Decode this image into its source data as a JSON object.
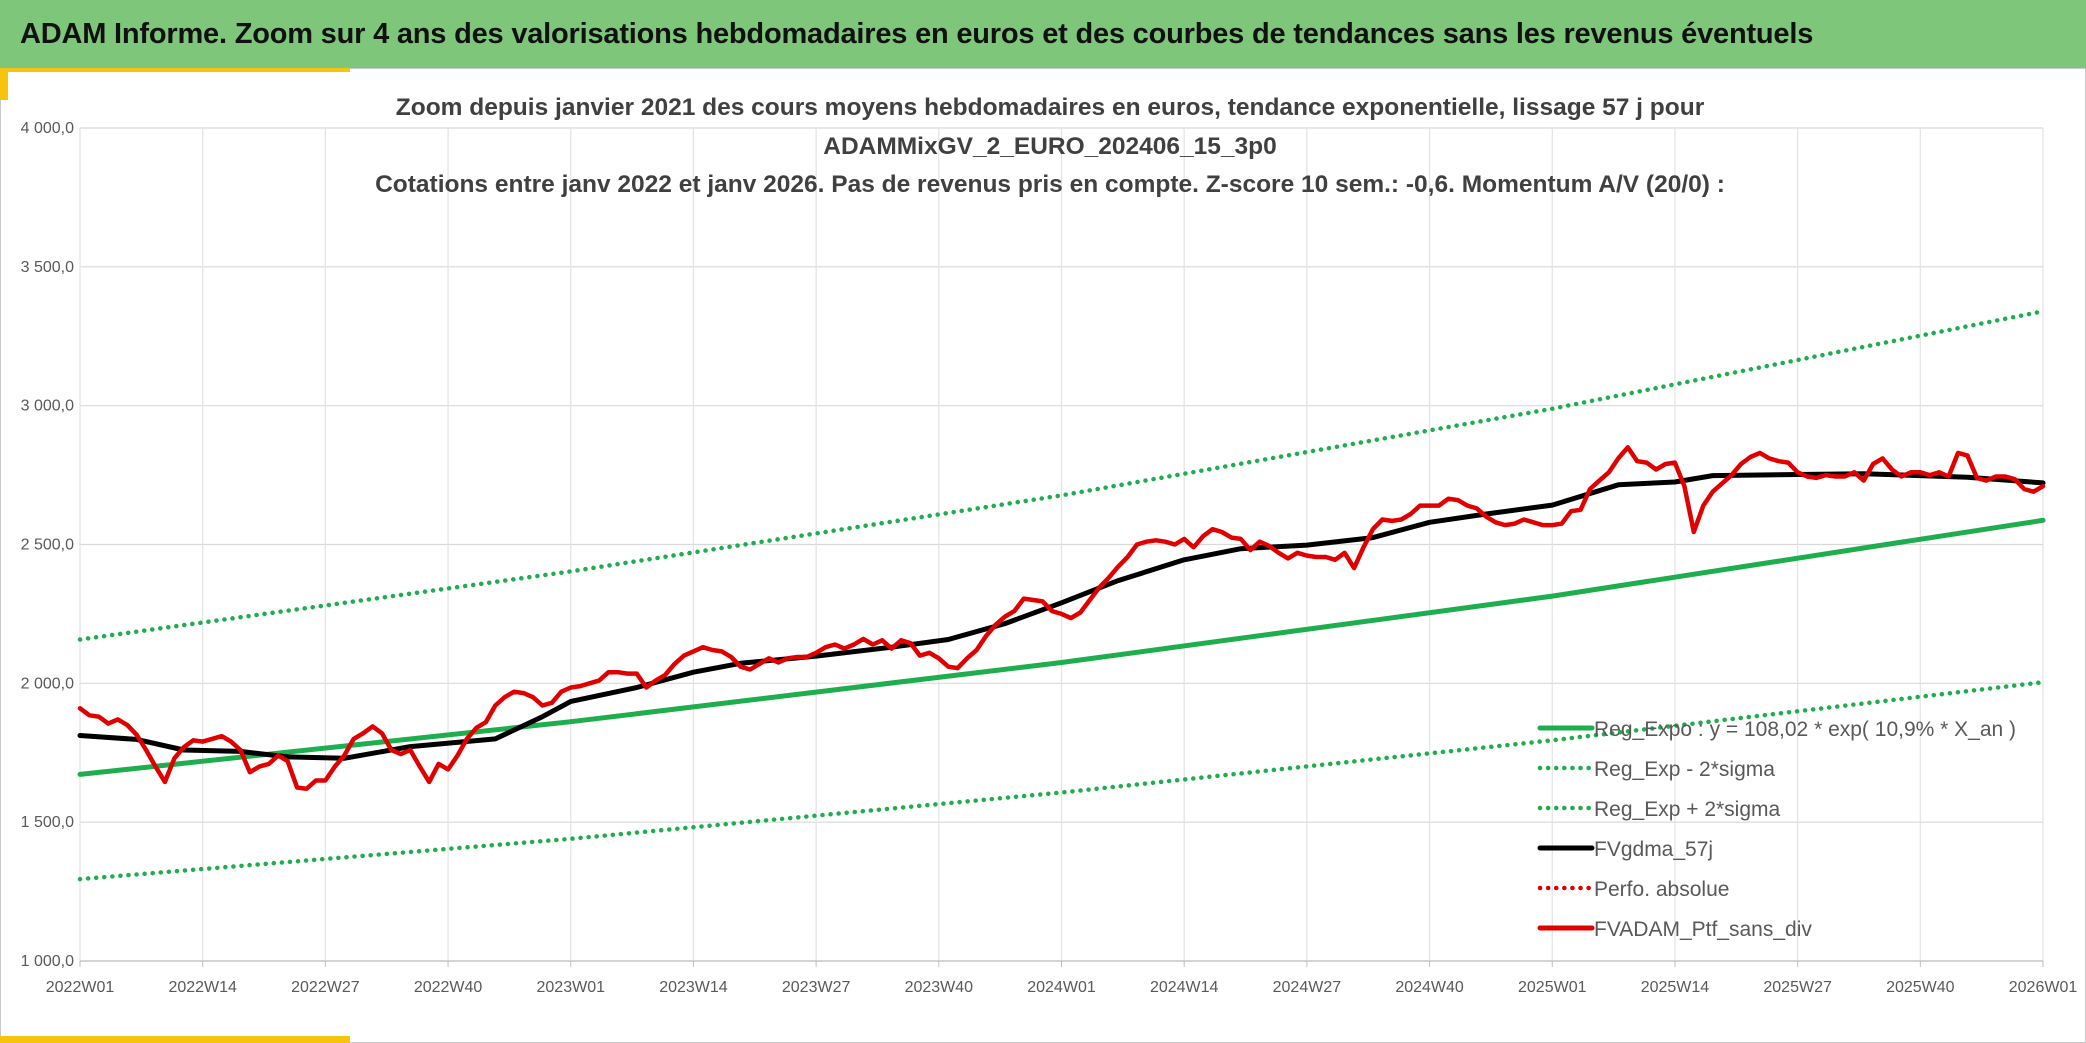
{
  "header": {
    "title": "ADAM Informe. Zoom sur 4 ans des valorisations hebdomadaires en euros et des courbes de tendances sans les revenus éventuels"
  },
  "colors": {
    "banner": "#7dc67a",
    "accent_bar": "#f6c40f",
    "trend": "#1fae4e",
    "band": "#1fae4e",
    "smooth": "#000000",
    "perf": "#e00000",
    "price": "#e00000"
  },
  "chart_data": {
    "type": "line",
    "title_lines": [
      "Zoom depuis janvier 2021 des cours moyens hebdomadaires en euros, tendance exponentielle, lissage 57 j pour",
      "ADAMMixGV_2_EURO_202406_15_3p0",
      "Cotations entre janv 2022 et janv 2026. Pas de revenus pris en compte. Z-score 10 sem.: -0,6. Momentum A/V (20/0) :"
    ],
    "xlabel": "",
    "ylabel": "",
    "x_ticks": [
      "2022W01",
      "2022W14",
      "2022W27",
      "2022W40",
      "2023W01",
      "2023W14",
      "2023W27",
      "2023W40",
      "2024W01",
      "2024W14",
      "2024W27",
      "2024W40",
      "2025W01",
      "2025W14",
      "2025W27",
      "2025W40",
      "2026W01"
    ],
    "x_range": [
      "2022W01",
      "2026W01"
    ],
    "y_ticks": [
      "1 000,0",
      "1 500,0",
      "2 000,0",
      "2 500,0",
      "3 000,0",
      "3 500,0",
      "4 000,0"
    ],
    "ylim": [
      1000,
      4000
    ],
    "grid": true,
    "legend_position": "bottom-right",
    "series": [
      {
        "name": "Reg_Expo : y = 108,02 * exp( 10,9% *  X_an )",
        "style": "solid",
        "color": "#1fae4e",
        "points": [
          [
            "2022W01",
            1672
          ],
          [
            "2023W01",
            1862
          ],
          [
            "2024W01",
            2075
          ],
          [
            "2025W01",
            2314
          ],
          [
            "2026W01",
            2587
          ]
        ]
      },
      {
        "name": "Reg_Exp - 2*sigma",
        "style": "dotted",
        "color": "#1fae4e",
        "points": [
          [
            "2022W01",
            1295
          ],
          [
            "2023W01",
            1440
          ],
          [
            "2024W01",
            1607
          ],
          [
            "2025W01",
            1795
          ],
          [
            "2026W01",
            2004
          ]
        ]
      },
      {
        "name": "Reg_Exp + 2*sigma",
        "style": "dotted",
        "color": "#1fae4e",
        "points": [
          [
            "2022W01",
            2158
          ],
          [
            "2023W01",
            2403
          ],
          [
            "2024W01",
            2677
          ],
          [
            "2025W01",
            2989
          ],
          [
            "2026W01",
            3340
          ]
        ]
      },
      {
        "name": "FVgdma_57j",
        "style": "solid",
        "color": "#000000",
        "points": [
          [
            "2022W01",
            1812
          ],
          [
            "2022W07",
            1798
          ],
          [
            "2022W12",
            1760
          ],
          [
            "2022W18",
            1755
          ],
          [
            "2022W23",
            1735
          ],
          [
            "2022W29",
            1730
          ],
          [
            "2022W36",
            1772
          ],
          [
            "2022W45",
            1800
          ],
          [
            "2022W50",
            1880
          ],
          [
            "2023W01",
            1935
          ],
          [
            "2023W08",
            1985
          ],
          [
            "2023W14",
            2040
          ],
          [
            "2023W19",
            2072
          ],
          [
            "2023W27",
            2098
          ],
          [
            "2023W35",
            2130
          ],
          [
            "2023W41",
            2158
          ],
          [
            "2023W47",
            2215
          ],
          [
            "2024W01",
            2290
          ],
          [
            "2024W07",
            2370
          ],
          [
            "2024W14",
            2445
          ],
          [
            "2024W20",
            2485
          ],
          [
            "2024W27",
            2498
          ],
          [
            "2024W34",
            2525
          ],
          [
            "2024W40",
            2580
          ],
          [
            "2024W46",
            2610
          ],
          [
            "2025W01",
            2642
          ],
          [
            "2025W08",
            2715
          ],
          [
            "2025W14",
            2725
          ],
          [
            "2025W18",
            2748
          ],
          [
            "2025W27",
            2752
          ],
          [
            "2025W34",
            2755
          ],
          [
            "2025W40",
            2748
          ],
          [
            "2025W45",
            2742
          ],
          [
            "2026W01",
            2722
          ]
        ]
      },
      {
        "name": "Perfo. absolue",
        "style": "dotted",
        "color": "#e00000",
        "points": []
      },
      {
        "name": "FVADAM_Ptf_sans_div",
        "style": "solid",
        "color": "#e00000",
        "points": [
          [
            "2022W01",
            1910
          ],
          [
            "2022W02",
            1885
          ],
          [
            "2022W03",
            1880
          ],
          [
            "2022W04",
            1855
          ],
          [
            "2022W05",
            1870
          ],
          [
            "2022W06",
            1850
          ],
          [
            "2022W07",
            1815
          ],
          [
            "2022W08",
            1760
          ],
          [
            "2022W09",
            1700
          ],
          [
            "2022W10",
            1645
          ],
          [
            "2022W11",
            1730
          ],
          [
            "2022W12",
            1770
          ],
          [
            "2022W13",
            1795
          ],
          [
            "2022W14",
            1790
          ],
          [
            "2022W15",
            1800
          ],
          [
            "2022W16",
            1810
          ],
          [
            "2022W17",
            1790
          ],
          [
            "2022W18",
            1760
          ],
          [
            "2022W19",
            1680
          ],
          [
            "2022W20",
            1700
          ],
          [
            "2022W21",
            1710
          ],
          [
            "2022W22",
            1740
          ],
          [
            "2022W23",
            1720
          ],
          [
            "2022W24",
            1625
          ],
          [
            "2022W25",
            1620
          ],
          [
            "2022W26",
            1650
          ],
          [
            "2022W27",
            1650
          ],
          [
            "2022W28",
            1700
          ],
          [
            "2022W29",
            1740
          ],
          [
            "2022W30",
            1800
          ],
          [
            "2022W31",
            1820
          ],
          [
            "2022W32",
            1845
          ],
          [
            "2022W33",
            1820
          ],
          [
            "2022W34",
            1760
          ],
          [
            "2022W35",
            1745
          ],
          [
            "2022W36",
            1760
          ],
          [
            "2022W37",
            1700
          ],
          [
            "2022W38",
            1645
          ],
          [
            "2022W39",
            1710
          ],
          [
            "2022W40",
            1690
          ],
          [
            "2022W41",
            1740
          ],
          [
            "2022W42",
            1800
          ],
          [
            "2022W43",
            1840
          ],
          [
            "2022W44",
            1860
          ],
          [
            "2022W45",
            1920
          ],
          [
            "2022W46",
            1950
          ],
          [
            "2022W47",
            1970
          ],
          [
            "2022W48",
            1965
          ],
          [
            "2022W49",
            1950
          ],
          [
            "2022W50",
            1920
          ],
          [
            "2022W51",
            1930
          ],
          [
            "2022W52",
            1970
          ],
          [
            "2023W01",
            1985
          ],
          [
            "2023W02",
            1990
          ],
          [
            "2023W03",
            2000
          ],
          [
            "2023W04",
            2010
          ],
          [
            "2023W05",
            2040
          ],
          [
            "2023W06",
            2040
          ],
          [
            "2023W07",
            2035
          ],
          [
            "2023W08",
            2035
          ],
          [
            "2023W09",
            1985
          ],
          [
            "2023W10",
            2010
          ],
          [
            "2023W11",
            2030
          ],
          [
            "2023W12",
            2070
          ],
          [
            "2023W13",
            2100
          ],
          [
            "2023W14",
            2115
          ],
          [
            "2023W15",
            2130
          ],
          [
            "2023W16",
            2120
          ],
          [
            "2023W17",
            2115
          ],
          [
            "2023W18",
            2095
          ],
          [
            "2023W19",
            2060
          ],
          [
            "2023W20",
            2050
          ],
          [
            "2023W21",
            2070
          ],
          [
            "2023W22",
            2090
          ],
          [
            "2023W23",
            2075
          ],
          [
            "2023W24",
            2090
          ],
          [
            "2023W25",
            2095
          ],
          [
            "2023W26",
            2095
          ],
          [
            "2023W27",
            2110
          ],
          [
            "2023W28",
            2130
          ],
          [
            "2023W29",
            2140
          ],
          [
            "2023W30",
            2125
          ],
          [
            "2023W31",
            2140
          ],
          [
            "2023W32",
            2160
          ],
          [
            "2023W33",
            2140
          ],
          [
            "2023W34",
            2155
          ],
          [
            "2023W35",
            2125
          ],
          [
            "2023W36",
            2155
          ],
          [
            "2023W37",
            2145
          ],
          [
            "2023W38",
            2100
          ],
          [
            "2023W39",
            2110
          ],
          [
            "2023W40",
            2090
          ],
          [
            "2023W41",
            2060
          ],
          [
            "2023W42",
            2055
          ],
          [
            "2023W43",
            2090
          ],
          [
            "2023W44",
            2120
          ],
          [
            "2023W45",
            2170
          ],
          [
            "2023W46",
            2210
          ],
          [
            "2023W47",
            2240
          ],
          [
            "2023W48",
            2260
          ],
          [
            "2023W49",
            2305
          ],
          [
            "2023W50",
            2300
          ],
          [
            "2023W51",
            2295
          ],
          [
            "2023W52",
            2260
          ],
          [
            "2024W01",
            2250
          ],
          [
            "2024W02",
            2235
          ],
          [
            "2024W03",
            2255
          ],
          [
            "2024W04",
            2300
          ],
          [
            "2024W05",
            2345
          ],
          [
            "2024W06",
            2380
          ],
          [
            "2024W07",
            2420
          ],
          [
            "2024W08",
            2455
          ],
          [
            "2024W09",
            2500
          ],
          [
            "2024W10",
            2510
          ],
          [
            "2024W11",
            2515
          ],
          [
            "2024W12",
            2510
          ],
          [
            "2024W13",
            2500
          ],
          [
            "2024W14",
            2520
          ],
          [
            "2024W15",
            2490
          ],
          [
            "2024W16",
            2530
          ],
          [
            "2024W17",
            2555
          ],
          [
            "2024W18",
            2545
          ],
          [
            "2024W19",
            2525
          ],
          [
            "2024W20",
            2520
          ],
          [
            "2024W21",
            2480
          ],
          [
            "2024W22",
            2510
          ],
          [
            "2024W23",
            2495
          ],
          [
            "2024W24",
            2470
          ],
          [
            "2024W25",
            2450
          ],
          [
            "2024W26",
            2470
          ],
          [
            "2024W27",
            2460
          ],
          [
            "2024W28",
            2455
          ],
          [
            "2024W29",
            2455
          ],
          [
            "2024W30",
            2445
          ],
          [
            "2024W31",
            2470
          ],
          [
            "2024W32",
            2415
          ],
          [
            "2024W33",
            2490
          ],
          [
            "2024W34",
            2555
          ],
          [
            "2024W35",
            2590
          ],
          [
            "2024W36",
            2585
          ],
          [
            "2024W37",
            2590
          ],
          [
            "2024W38",
            2610
          ],
          [
            "2024W39",
            2640
          ],
          [
            "2024W40",
            2640
          ],
          [
            "2024W41",
            2640
          ],
          [
            "2024W42",
            2665
          ],
          [
            "2024W43",
            2660
          ],
          [
            "2024W44",
            2640
          ],
          [
            "2024W45",
            2630
          ],
          [
            "2024W46",
            2600
          ],
          [
            "2024W47",
            2580
          ],
          [
            "2024W48",
            2570
          ],
          [
            "2024W49",
            2575
          ],
          [
            "2024W50",
            2590
          ],
          [
            "2024W51",
            2580
          ],
          [
            "2024W52",
            2570
          ],
          [
            "2025W01",
            2570
          ],
          [
            "2025W02",
            2575
          ],
          [
            "2025W03",
            2620
          ],
          [
            "2025W04",
            2625
          ],
          [
            "2025W05",
            2700
          ],
          [
            "2025W06",
            2730
          ],
          [
            "2025W07",
            2760
          ],
          [
            "2025W08",
            2810
          ],
          [
            "2025W09",
            2850
          ],
          [
            "2025W10",
            2800
          ],
          [
            "2025W11",
            2795
          ],
          [
            "2025W12",
            2770
          ],
          [
            "2025W13",
            2790
          ],
          [
            "2025W14",
            2795
          ],
          [
            "2025W15",
            2710
          ],
          [
            "2025W16",
            2545
          ],
          [
            "2025W17",
            2640
          ],
          [
            "2025W18",
            2690
          ],
          [
            "2025W19",
            2720
          ],
          [
            "2025W20",
            2750
          ],
          [
            "2025W21",
            2790
          ],
          [
            "2025W22",
            2815
          ],
          [
            "2025W23",
            2830
          ],
          [
            "2025W24",
            2810
          ],
          [
            "2025W25",
            2800
          ],
          [
            "2025W26",
            2795
          ],
          [
            "2025W27",
            2760
          ],
          [
            "2025W28",
            2745
          ],
          [
            "2025W29",
            2740
          ],
          [
            "2025W30",
            2750
          ],
          [
            "2025W31",
            2745
          ],
          [
            "2025W32",
            2745
          ],
          [
            "2025W33",
            2760
          ],
          [
            "2025W34",
            2730
          ],
          [
            "2025W35",
            2790
          ],
          [
            "2025W36",
            2810
          ],
          [
            "2025W37",
            2770
          ],
          [
            "2025W38",
            2745
          ],
          [
            "2025W39",
            2760
          ],
          [
            "2025W40",
            2760
          ],
          [
            "2025W41",
            2750
          ],
          [
            "2025W42",
            2760
          ],
          [
            "2025W43",
            2745
          ],
          [
            "2025W44",
            2830
          ],
          [
            "2025W45",
            2820
          ],
          [
            "2025W46",
            2740
          ],
          [
            "2025W47",
            2730
          ],
          [
            "2025W48",
            2745
          ],
          [
            "2025W49",
            2745
          ],
          [
            "2025W50",
            2735
          ],
          [
            "2025W51",
            2700
          ],
          [
            "2025W52",
            2690
          ],
          [
            "2026W01",
            2710
          ]
        ]
      }
    ]
  }
}
